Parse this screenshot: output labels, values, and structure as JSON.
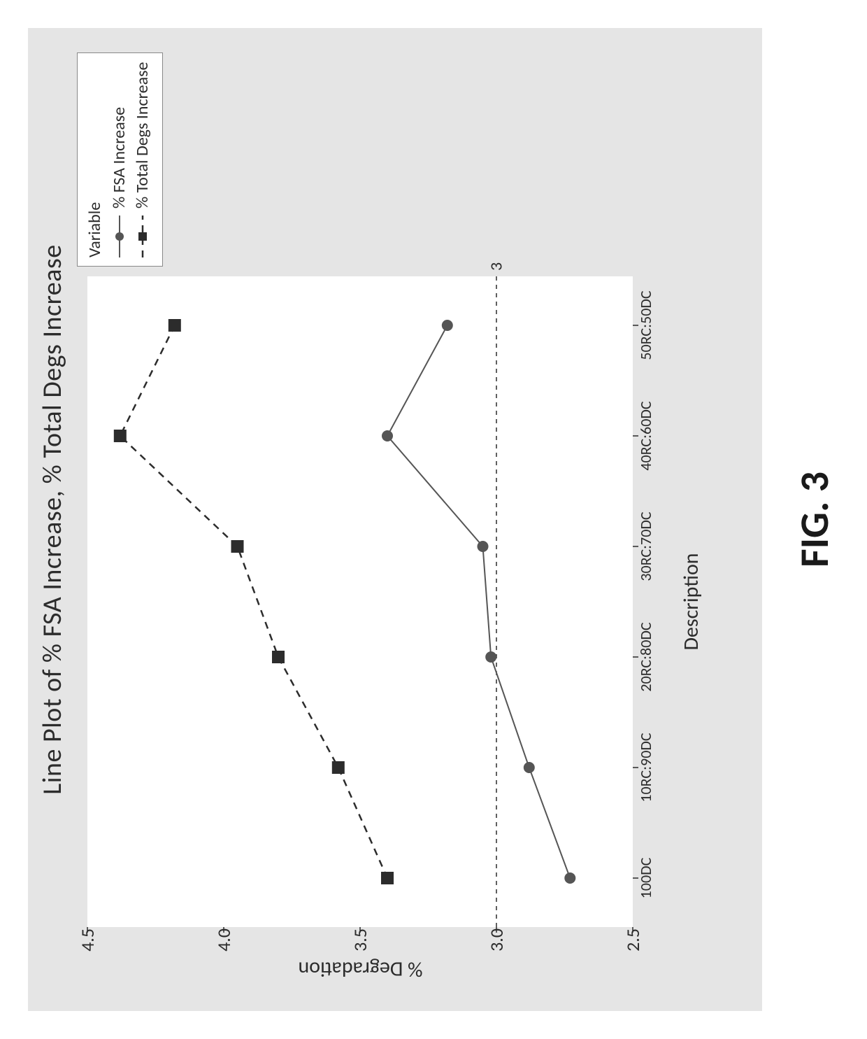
{
  "figure_label": "FIG. 3",
  "chart": {
    "type": "line",
    "title": "Line Plot of % FSA Increase, % Total Degs Increase",
    "xlabel": "Description",
    "ylabel": "% Degradation",
    "background_color": "#e5e5e5",
    "plot_background_color": "#ffffff",
    "title_fontsize": 38,
    "label_fontsize": 30,
    "tick_fontsize": 26,
    "xtick_fontsize": 22,
    "text_color": "#2c2c2c",
    "ylim": [
      2.5,
      4.5
    ],
    "yticks": [
      2.5,
      3.0,
      3.5,
      4.0,
      4.5
    ],
    "ytick_labels": [
      "2.5",
      "3.0",
      "3.5",
      "4.0",
      "4.5"
    ],
    "categories": [
      "100DC",
      "10RC:90DC",
      "20RC:80DC",
      "30RC:70DC",
      "40RC:60DC",
      "50RC:50DC"
    ],
    "reference_line": {
      "value": 3,
      "label": "3",
      "dash": "6,6",
      "color": "#2c2c2c",
      "width": 1.5
    },
    "legend": {
      "header": "Variable",
      "position": "outside-right-top",
      "border_color": "#888888",
      "background": "#ffffff"
    },
    "series": [
      {
        "name": "% FSA Increase",
        "values": [
          2.73,
          2.88,
          3.02,
          3.05,
          3.4,
          3.18
        ],
        "color": "#555555",
        "line_dash": "solid",
        "line_width": 2,
        "marker": "circle",
        "marker_size": 8,
        "marker_fill": "#555555"
      },
      {
        "name": "% Total Degs Increase",
        "values": [
          3.4,
          3.58,
          3.8,
          3.95,
          4.38,
          4.18
        ],
        "color": "#2c2c2c",
        "line_dash": "10,8",
        "line_width": 2.5,
        "marker": "square",
        "marker_size": 9,
        "marker_fill": "#2c2c2c"
      }
    ]
  }
}
